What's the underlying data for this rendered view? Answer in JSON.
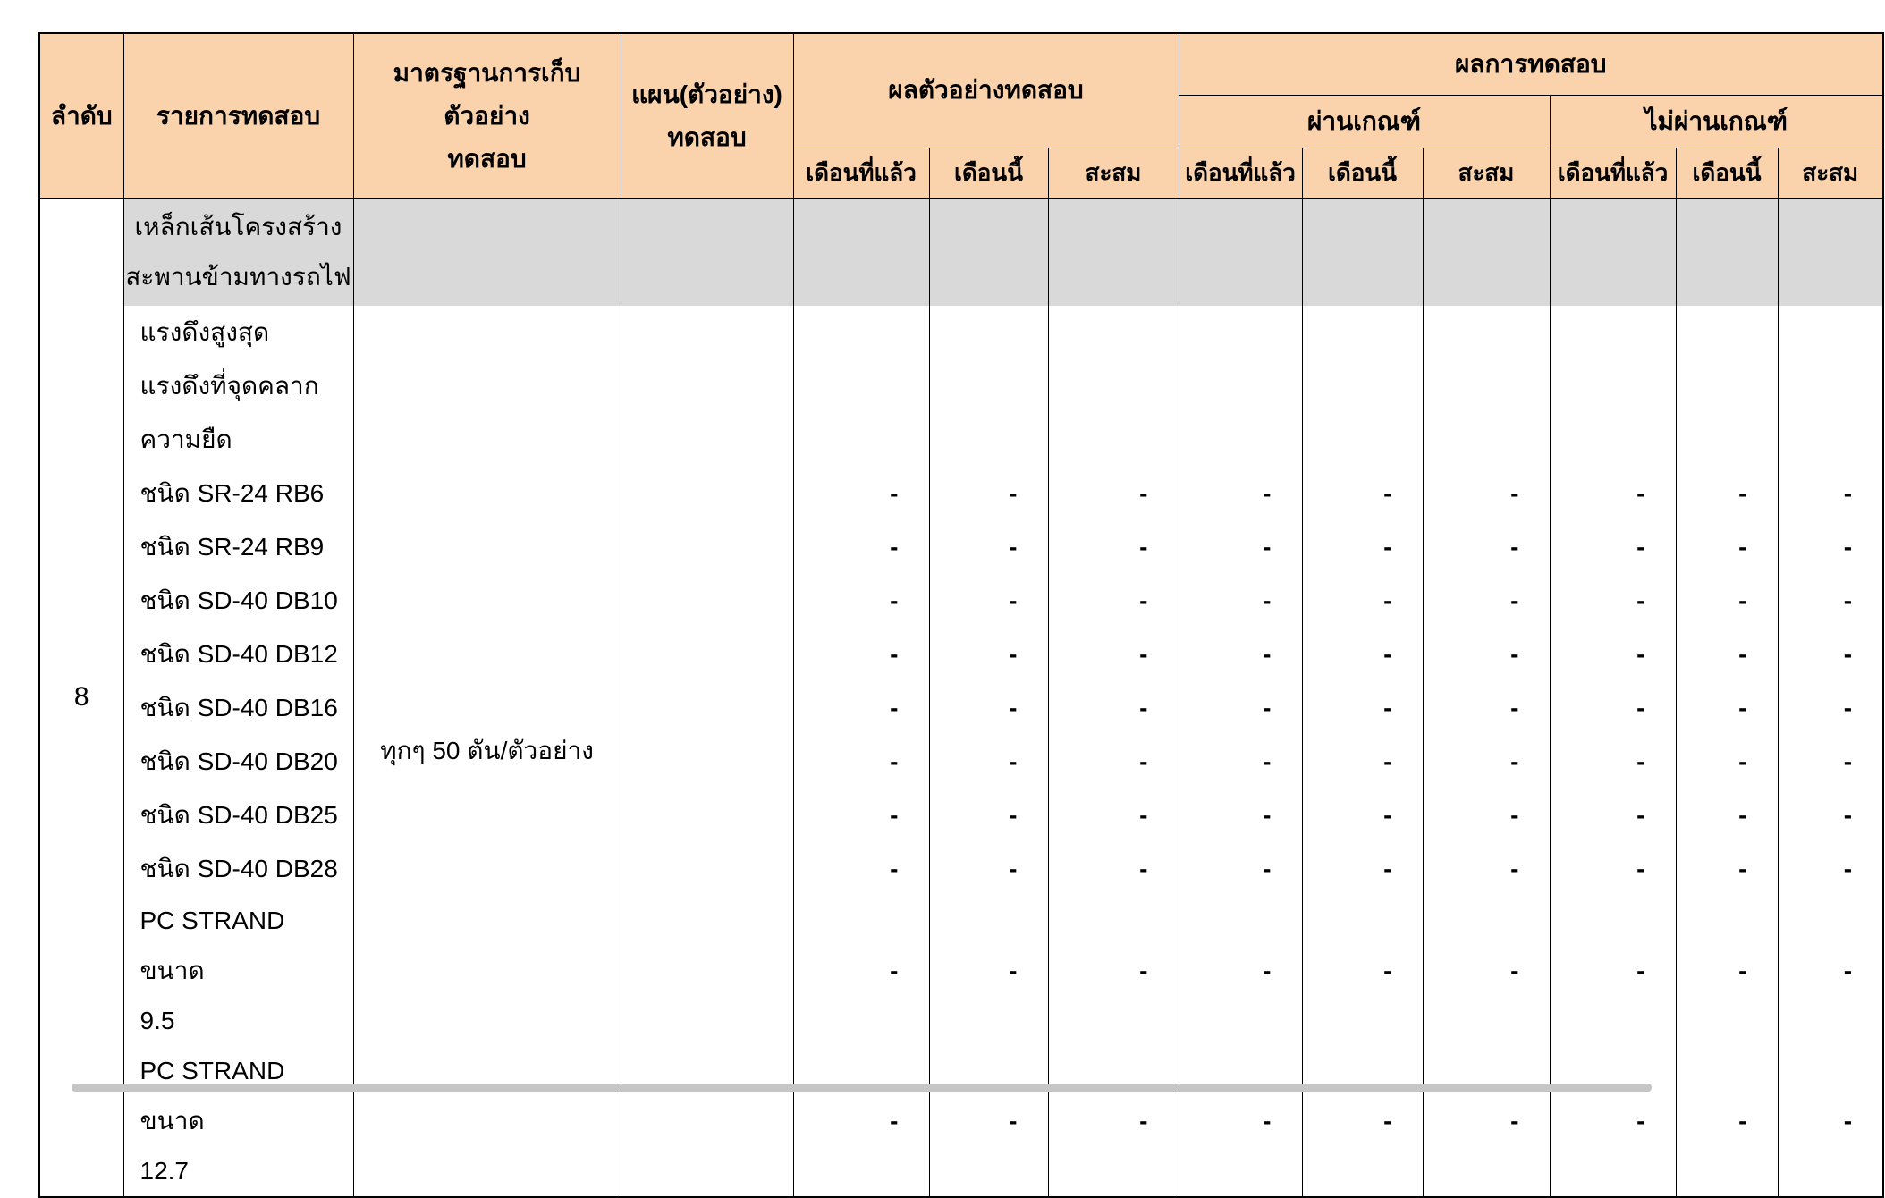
{
  "table": {
    "header": {
      "col_no": "ลำดับ",
      "col_item": "รายการทดสอบ",
      "col_standard": "มาตรฐานการเก็บตัวอย่าง\nทดสอบ",
      "col_plan": "แผน(ตัวอย่าง)\nทดสอบ",
      "group_sample_results": "ผลตัวอย่างทดสอบ",
      "group_test_results": "ผลการทดสอบ",
      "group_pass": "ผ่านเกณฑ์",
      "group_fail": "ไม่ผ่านเกณฑ์",
      "sub_headers": [
        "เดือนที่แล้ว",
        "เดือนนี้",
        "สะสม"
      ]
    },
    "row_no": "8",
    "standard_value": "ทุกๆ 50 ตัน/ตัวอย่าง",
    "plan_value": "",
    "group_row_label": "เหล็กเส้นโครงสร้าง\nสะพานข้ามทางรถไฟ",
    "placeholder": "-",
    "rows": [
      {
        "label": "แรงดึงสูงสุด",
        "tall": false,
        "values": [
          "",
          "",
          "",
          "",
          "",
          "",
          "",
          "",
          ""
        ]
      },
      {
        "label": "แรงดึงที่จุดคลาก",
        "tall": false,
        "values": [
          "",
          "",
          "",
          "",
          "",
          "",
          "",
          "",
          ""
        ]
      },
      {
        "label": "ความยืด",
        "tall": false,
        "values": [
          "",
          "",
          "",
          "",
          "",
          "",
          "",
          "",
          ""
        ]
      },
      {
        "label": "ชนิด SR-24 RB6",
        "tall": false,
        "values": [
          "-",
          "-",
          "-",
          "-",
          "-",
          "-",
          "-",
          "-",
          "-"
        ]
      },
      {
        "label": "ชนิด SR-24 RB9",
        "tall": false,
        "values": [
          "-",
          "-",
          "-",
          "-",
          "-",
          "-",
          "-",
          "-",
          "-"
        ]
      },
      {
        "label": "ชนิด SD-40 DB10",
        "tall": false,
        "values": [
          "-",
          "-",
          "-",
          "-",
          "-",
          "-",
          "-",
          "-",
          "-"
        ]
      },
      {
        "label": "ชนิด SD-40 DB12",
        "tall": false,
        "values": [
          "-",
          "-",
          "-",
          "-",
          "-",
          "-",
          "-",
          "-",
          "-"
        ]
      },
      {
        "label": "ชนิด SD-40 DB16",
        "tall": false,
        "values": [
          "-",
          "-",
          "-",
          "-",
          "-",
          "-",
          "-",
          "-",
          "-"
        ]
      },
      {
        "label": "ชนิด SD-40 DB20",
        "tall": false,
        "values": [
          "-",
          "-",
          "-",
          "-",
          "-",
          "-",
          "-",
          "-",
          "-"
        ]
      },
      {
        "label": "ชนิด SD-40 DB25",
        "tall": false,
        "values": [
          "-",
          "-",
          "-",
          "-",
          "-",
          "-",
          "-",
          "-",
          "-"
        ]
      },
      {
        "label": "ชนิด SD-40 DB28",
        "tall": false,
        "values": [
          "-",
          "-",
          "-",
          "-",
          "-",
          "-",
          "-",
          "-",
          "-"
        ]
      },
      {
        "label": "PC STRAND ขนาด\n9.5",
        "tall": true,
        "values": [
          "-",
          "-",
          "-",
          "-",
          "-",
          "-",
          "-",
          "-",
          "-"
        ]
      },
      {
        "label": "PC STRAND ขนาด\n12.7",
        "tall": true,
        "values": [
          "-",
          "-",
          "-",
          "-",
          "-",
          "-",
          "-",
          "-",
          "-"
        ]
      }
    ],
    "colors": {
      "header_bg": "#FAD2AC",
      "group_row_bg": "#D9D9D9",
      "border": "#000000",
      "bottom_bar": "#C6C6C6"
    }
  }
}
